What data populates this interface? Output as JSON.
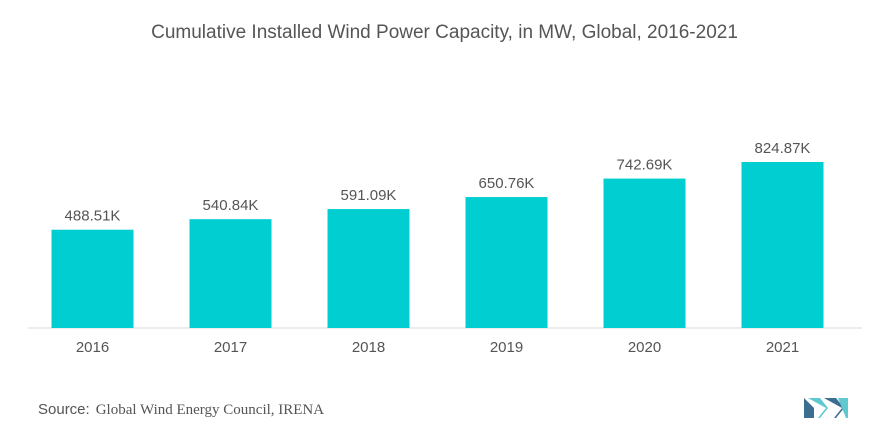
{
  "title": "Cumulative Installed Wind Power Capacity, in MW, Global, 2016-2021",
  "source": {
    "label": "Source:",
    "text": "Global Wind Energy Council, IRENA"
  },
  "colors": {
    "bar": "#00CED1",
    "text": "#555555",
    "axis": "#D9D9D9",
    "logo_dark": "#3C6E8F",
    "logo_light": "#5FC9D0"
  },
  "chart_data": {
    "type": "bar",
    "title": "Cumulative Installed Wind Power Capacity, in MW, Global, 2016-2021",
    "categories": [
      "2016",
      "2017",
      "2018",
      "2019",
      "2020",
      "2021"
    ],
    "values": [
      488.51,
      540.84,
      591.09,
      650.76,
      742.69,
      824.87
    ],
    "data_labels": [
      "488.51K",
      "540.84K",
      "591.09K",
      "650.76K",
      "742.69K",
      "824.87K"
    ],
    "xlabel": "",
    "ylabel": "",
    "ylim": [
      0,
      825
    ],
    "grid": false,
    "legend": "none"
  }
}
